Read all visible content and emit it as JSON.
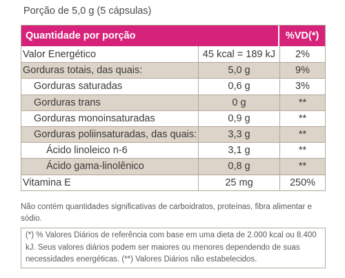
{
  "portion_title": "Porção de 5,0 g (5 cápsulas)",
  "header": {
    "left": "Quantidade por porção",
    "right": "%VD(*)"
  },
  "rows": [
    {
      "name": "Valor Energético",
      "amount": "45 kcal = 189 kJ",
      "vd": "2%"
    },
    {
      "name": "Gorduras totais, das quais:",
      "amount": "5,0 g",
      "vd": "9%"
    },
    {
      "name": "Gorduras saturadas",
      "amount": "0,6 g",
      "vd": "3%"
    },
    {
      "name": "Gorduras trans",
      "amount": "0 g",
      "vd": "**"
    },
    {
      "name": "Gorduras monoinsaturadas",
      "amount": "0,9 g",
      "vd": "**"
    },
    {
      "name": "Gorduras poliinsaturadas, das quais:",
      "amount": "3,3 g",
      "vd": "**"
    },
    {
      "name": "Ácido linoleico n-6",
      "amount": "3,1 g",
      "vd": "**"
    },
    {
      "name": "Ácido gama-linolênico",
      "amount": "0,8 g",
      "vd": "**"
    },
    {
      "name": "Vitamina E",
      "amount": "25 mg",
      "vd": "250%"
    }
  ],
  "note": "Não contém quantidades significativas de carboidratos, proteínas, fibra alimentar e sódio.",
  "footnote": "(*) % Valores Diários de referência com base em uma dieta de 2.000 kcal ou 8.400 kJ. Seus valores diários podem ser maiores ou menores dependendo de suas necessidades energéticas. (**) Valores Diários não estabelecidos.",
  "colors": {
    "header_bg": "#d6227a",
    "shade_bg": "#dcd4c8",
    "border": "#b0a89a"
  }
}
